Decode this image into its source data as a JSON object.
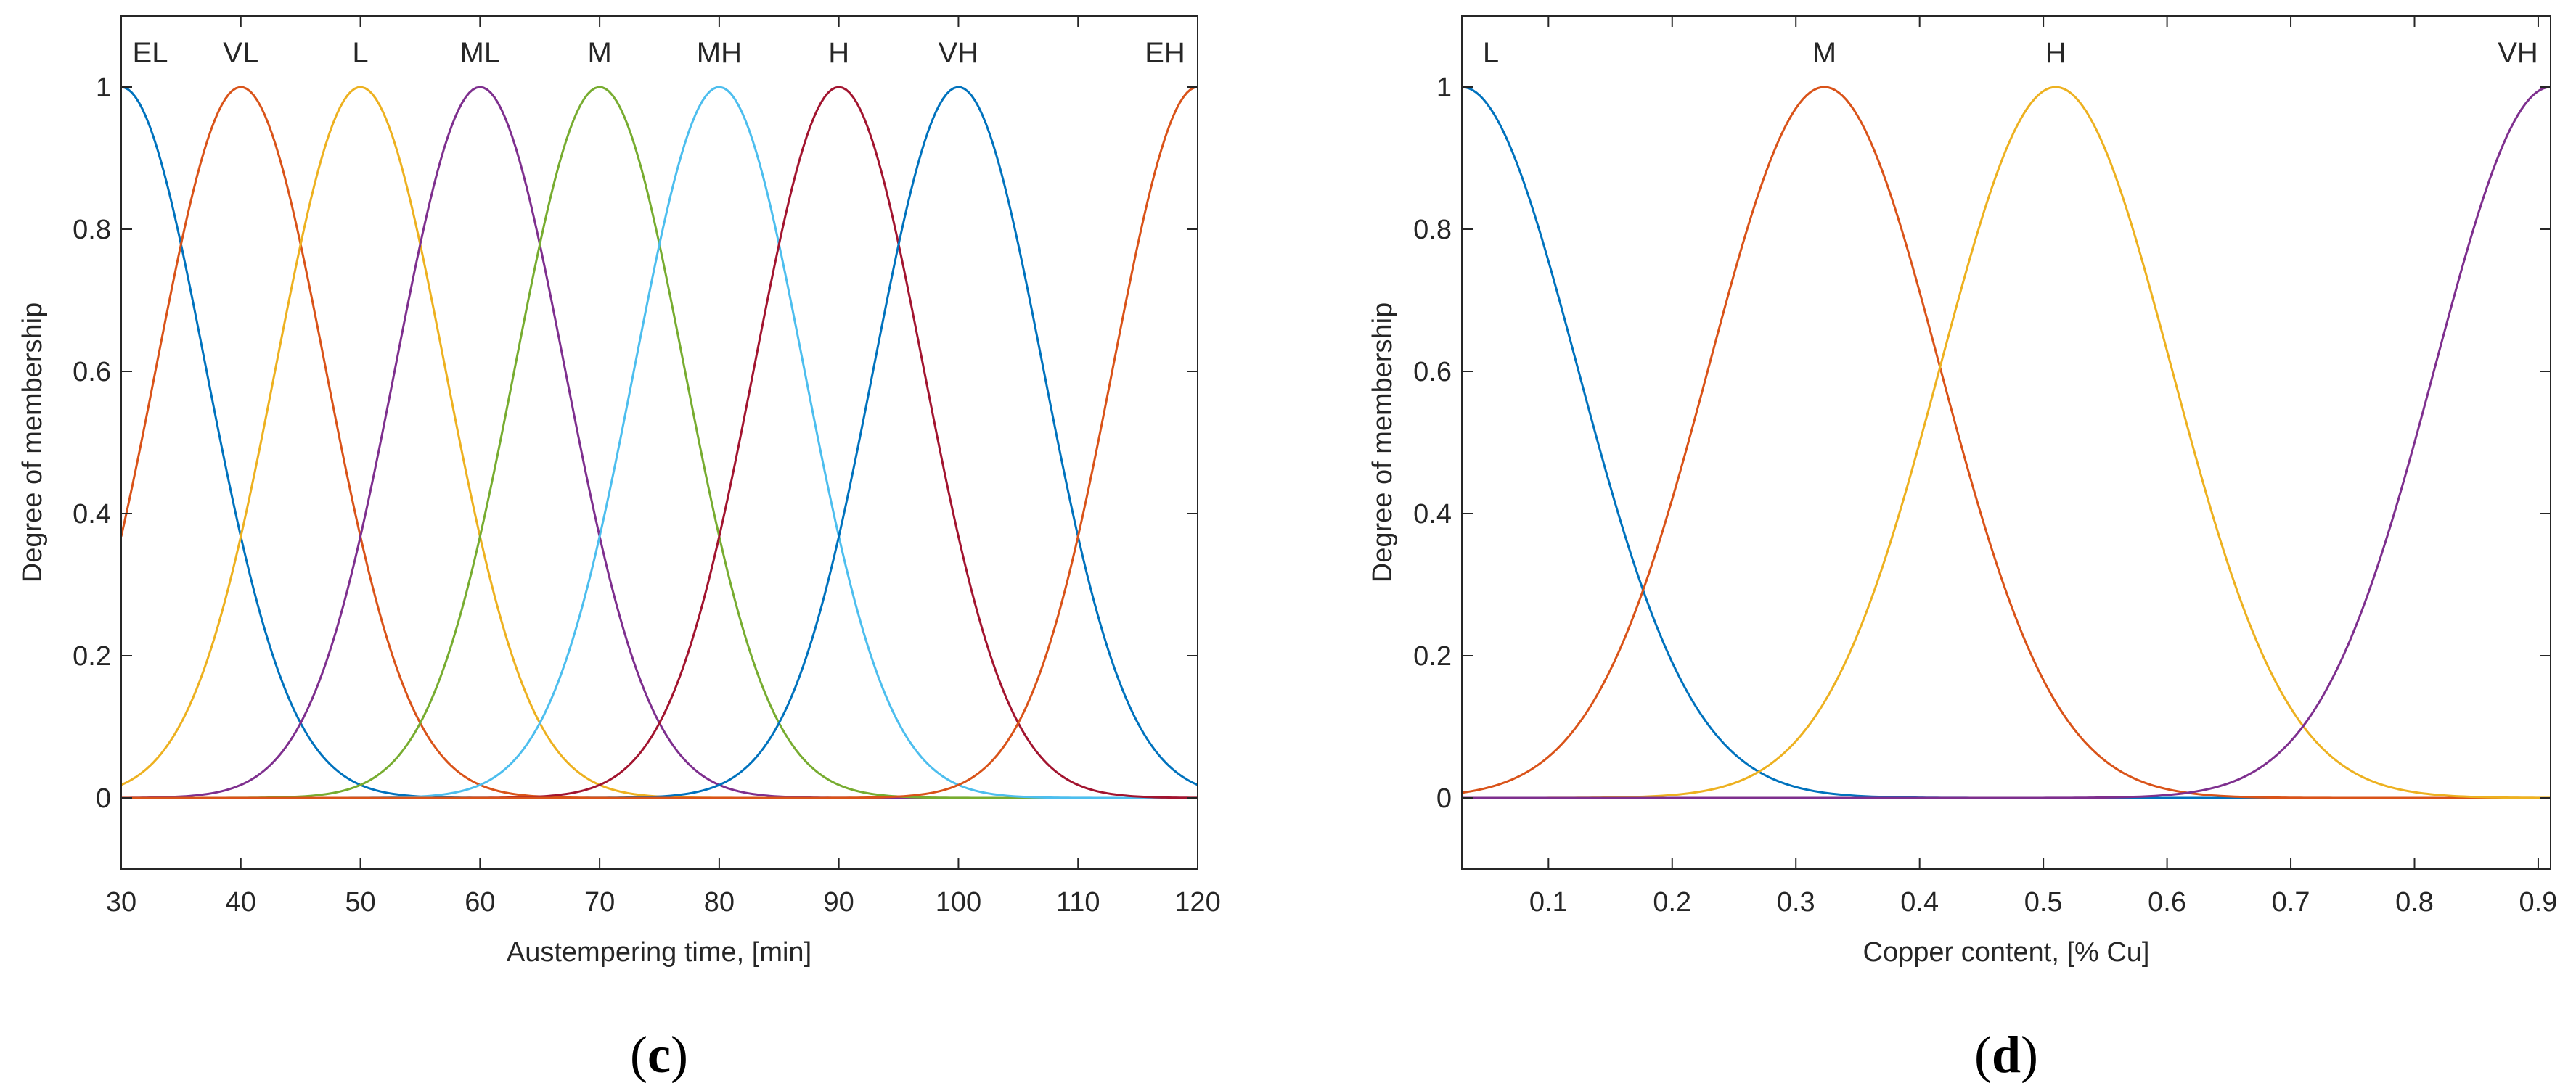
{
  "chart_data": [
    {
      "type": "line",
      "panel_label": "c",
      "xlabel": "Austempering time, [min]",
      "ylabel": "Degree of membership",
      "xlim": [
        30,
        120
      ],
      "ylim": [
        -0.1,
        1.1
      ],
      "xticks": [
        30,
        40,
        50,
        60,
        70,
        80,
        90,
        100,
        110,
        120
      ],
      "yticks": [
        0,
        0.2,
        0.4,
        0.6,
        0.8,
        1
      ],
      "ytick_labels": [
        "0",
        "0.2",
        "0.4",
        "0.6",
        "0.8",
        "1"
      ],
      "membership": "gaussian",
      "series": [
        {
          "name": "EL",
          "center": 30,
          "sigma": 7.07,
          "color": "#0072BD"
        },
        {
          "name": "VL",
          "center": 40,
          "sigma": 7.07,
          "color": "#D95319"
        },
        {
          "name": "L",
          "center": 50,
          "sigma": 7.07,
          "color": "#EDB120"
        },
        {
          "name": "ML",
          "center": 60,
          "sigma": 7.07,
          "color": "#7E2F8E"
        },
        {
          "name": "M",
          "center": 70,
          "sigma": 7.07,
          "color": "#77AC30"
        },
        {
          "name": "MH",
          "center": 80,
          "sigma": 7.07,
          "color": "#4DBEEE"
        },
        {
          "name": "H",
          "center": 90,
          "sigma": 7.07,
          "color": "#A2142F"
        },
        {
          "name": "VH",
          "center": 100,
          "sigma": 7.07,
          "color": "#0072BD"
        },
        {
          "name": "EH",
          "center": 120,
          "sigma": 7.07,
          "color": "#D95319"
        }
      ]
    },
    {
      "type": "line",
      "panel_label": "d",
      "xlabel": "Copper content, [% Cu]",
      "ylabel": "Degree of membership",
      "xlim": [
        0.03,
        0.91
      ],
      "ylim": [
        -0.1,
        1.1
      ],
      "xticks": [
        0.1,
        0.2,
        0.3,
        0.4,
        0.5,
        0.6,
        0.7,
        0.8,
        0.9
      ],
      "yticks": [
        0,
        0.2,
        0.4,
        0.6,
        0.8,
        1
      ],
      "ytick_labels": [
        "0",
        "0.2",
        "0.4",
        "0.6",
        "0.8",
        "1"
      ],
      "membership": "gaussian",
      "series": [
        {
          "name": "L",
          "center": 0.03,
          "sigma": 0.0934,
          "color": "#0072BD"
        },
        {
          "name": "M",
          "center": 0.323,
          "sigma": 0.0934,
          "color": "#D95319"
        },
        {
          "name": "H",
          "center": 0.51,
          "sigma": 0.0934,
          "color": "#EDB120"
        },
        {
          "name": "VH",
          "center": 0.91,
          "sigma": 0.0934,
          "color": "#7E2F8E"
        }
      ]
    }
  ]
}
